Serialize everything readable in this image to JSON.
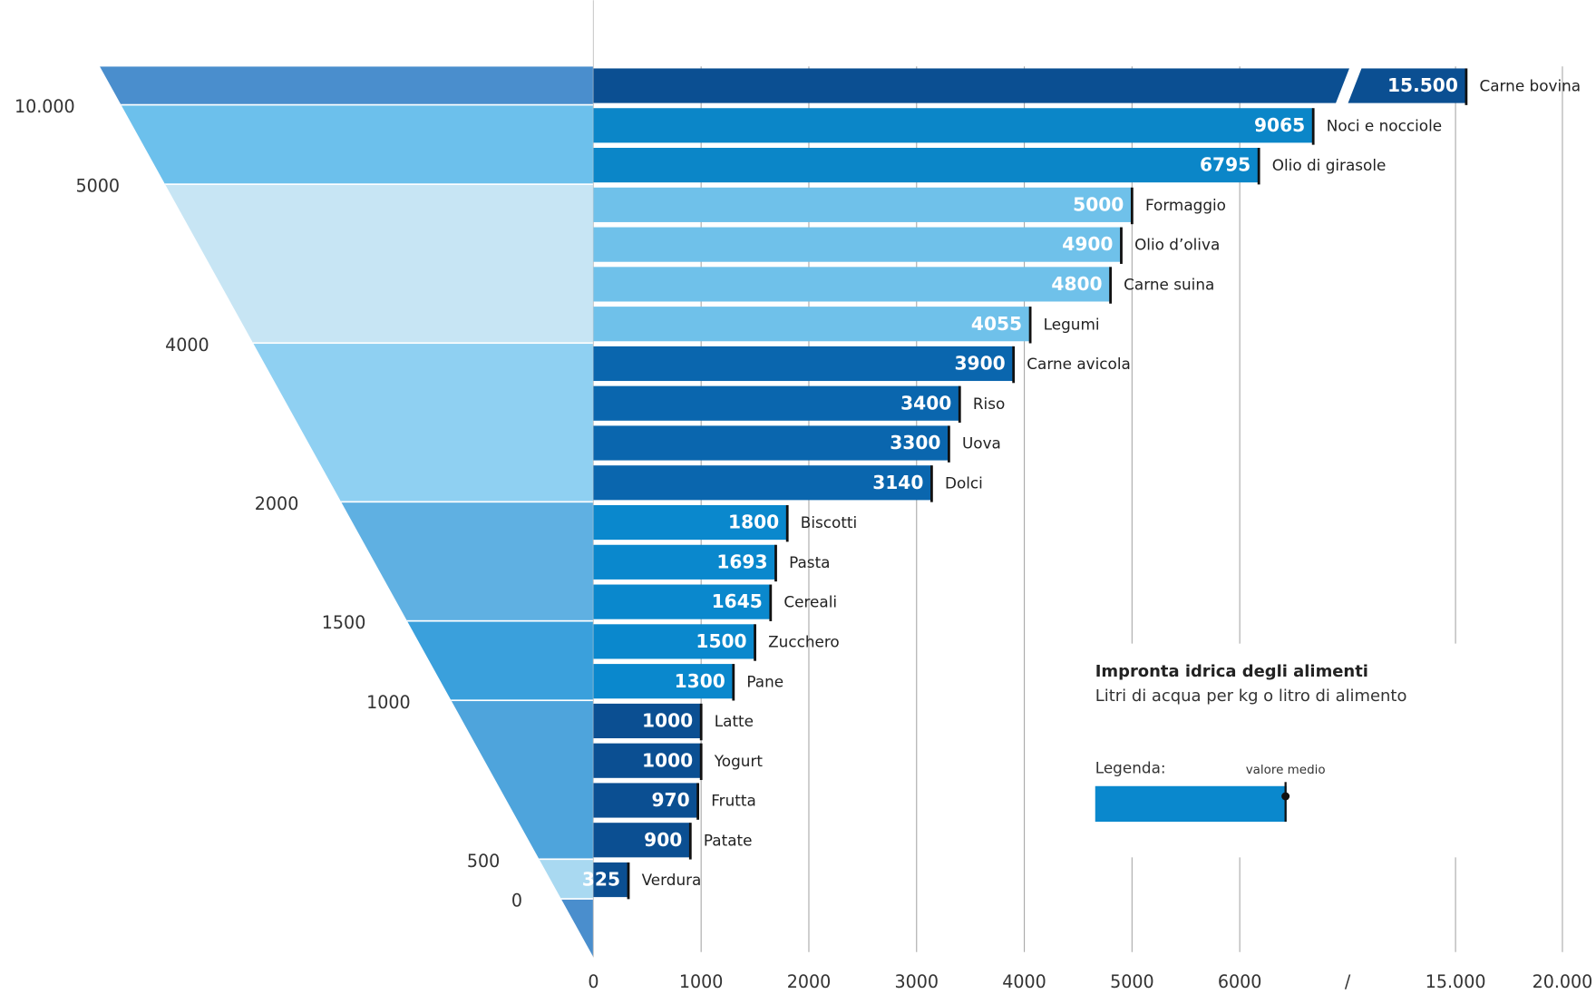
{
  "chart_data": {
    "type": "bar",
    "orientation": "horizontal",
    "title": "Impronta idrica degli alimenti",
    "subtitle": "Litri di acqua per kg o litro di alimento",
    "legend_title": "Legenda:",
    "legend_marker_label": "valore medio",
    "categories": [
      "Carne bovina",
      "Noci e nocciole",
      "Olio di girasole",
      "Formaggio",
      "Olio d’oliva",
      "Carne suina",
      "Legumi",
      "Carne avicola",
      "Riso",
      "Uova",
      "Dolci",
      "Biscotti",
      "Pasta",
      "Cereali",
      "Zucchero",
      "Pane",
      "Latte",
      "Yogurt",
      "Frutta",
      "Patate",
      "Verdura"
    ],
    "values": [
      15500,
      9065,
      6795,
      5000,
      4900,
      4800,
      4055,
      3900,
      3400,
      3300,
      3140,
      1800,
      1693,
      1645,
      1500,
      1300,
      1000,
      1000,
      970,
      900,
      325
    ],
    "value_labels": [
      "15.500",
      "9065",
      "6795",
      "5000",
      "4900",
      "4800",
      "4055",
      "3900",
      "3400",
      "3300",
      "3140",
      "1800",
      "1693",
      "1645",
      "1500",
      "1300",
      "1000",
      "1000",
      "970",
      "900",
      "325"
    ],
    "colors": [
      "#0b4f92",
      "#0b86c8",
      "#0b86c8",
      "#6fc1ea",
      "#6fc1ea",
      "#6fc1ea",
      "#6fc1ea",
      "#0a66ae",
      "#0a66ae",
      "#0a66ae",
      "#0a66ae",
      "#0a88cd",
      "#0a88cd",
      "#0a88cd",
      "#0a88cd",
      "#0a88cd",
      "#0b4f92",
      "#0b4f92",
      "#0b4f92",
      "#0b4f92",
      "#0b4f92"
    ],
    "xlim": [
      0,
      20000
    ],
    "xticks": [
      0,
      1000,
      2000,
      3000,
      4000,
      5000,
      6000,
      {
        "value": 15000,
        "label": "15.000"
      },
      {
        "value": 20000,
        "label": "20.000"
      }
    ],
    "axis_break": {
      "range": [
        6000,
        15000
      ],
      "label": "/"
    },
    "grid": true,
    "pyramid_levels": [
      {
        "value": 10000,
        "label": "10.000"
      },
      5000,
      4000,
      2000,
      1500,
      1000,
      500,
      0
    ],
    "band_colors": [
      "#4a8ecd",
      "#6cc0ec",
      "#c7e5f4",
      "#8fd0f2",
      "#5fb0e2",
      "#3aa0dc",
      "#4ea4dc",
      "#a9d9f1"
    ]
  }
}
